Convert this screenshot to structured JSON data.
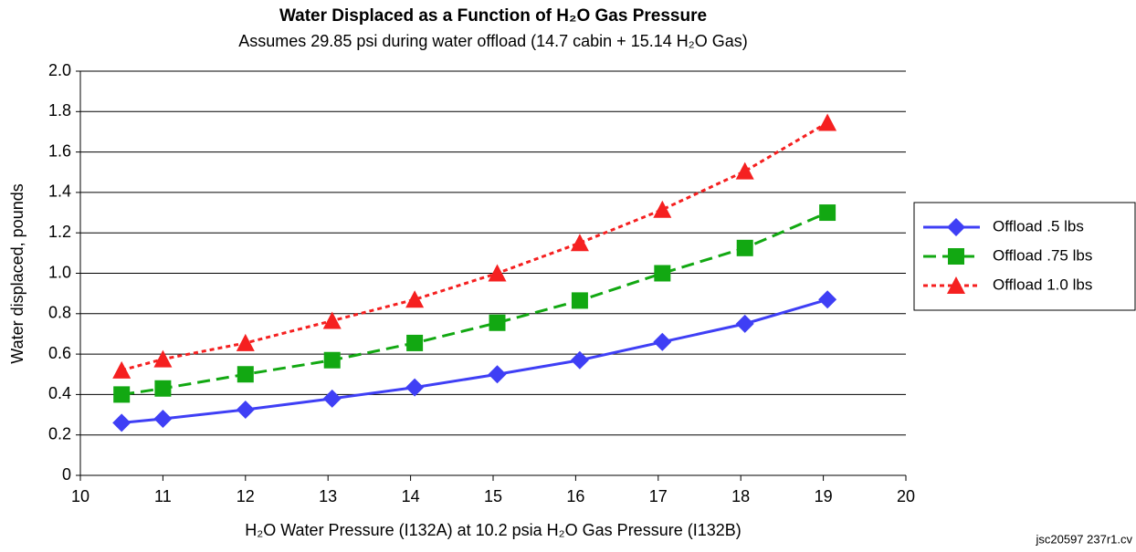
{
  "chart_data": {
    "type": "line",
    "title": "Water Displaced as a Function of H₂O Gas Pressure",
    "subtitle": "Assumes 29.85 psi during water offload (14.7 cabin + 15.14 H₂O Gas)",
    "x_label": "H₂O Water Pressure (I132A) at 10.2 psia H₂O Gas Pressure (I132B)",
    "y_label": "Water displaced, pounds",
    "annotation": "jsc20597  237r1.cv",
    "x": [
      10.5,
      11,
      12,
      13.05,
      14.05,
      15.05,
      16.05,
      17.05,
      18.05,
      19.05
    ],
    "series": [
      {
        "name": "Offload .5 lbs",
        "color": "#3f3ff5",
        "marker": "diamond",
        "dash": "solid",
        "values": [
          0.26,
          0.28,
          0.325,
          0.38,
          0.435,
          0.5,
          0.57,
          0.66,
          0.75,
          0.87
        ]
      },
      {
        "name": "Offload .75 lbs",
        "color": "#12a812",
        "marker": "square",
        "dash": "dashed",
        "values": [
          0.4,
          0.43,
          0.5,
          0.57,
          0.655,
          0.755,
          0.865,
          1.0,
          1.125,
          1.3
        ]
      },
      {
        "name": "Offload 1.0 lbs",
        "color": "#f52020",
        "marker": "triangle",
        "dash": "dotted",
        "values": [
          0.52,
          0.575,
          0.655,
          0.765,
          0.87,
          1.0,
          1.15,
          1.315,
          1.505,
          1.745
        ]
      }
    ],
    "xlim": [
      10,
      20
    ],
    "xticks": [
      10,
      11,
      12,
      13,
      14,
      15,
      16,
      17,
      18,
      19,
      20
    ],
    "ylim": [
      0,
      2
    ],
    "yticks": [
      0,
      0.2,
      0.4,
      0.6,
      0.8,
      {
        "value": 1,
        "label": "1.0"
      },
      1.2,
      1.4,
      1.6,
      1.8,
      {
        "value": 2,
        "label": "2.0"
      }
    ],
    "grid": true,
    "legend": "right"
  }
}
